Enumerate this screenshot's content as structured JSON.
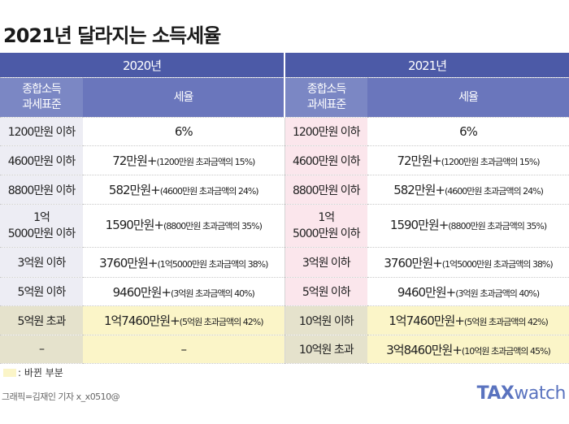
{
  "title": "2021년 달라지는 소득세율",
  "header": {
    "year_2020": "2020년",
    "year_2021": "2021년",
    "bracket_label_line1": "종합소득",
    "bracket_label_line2": "과세표준",
    "rate_label": "세율"
  },
  "rows": [
    {
      "b20": "1200만원 이하",
      "r20_main": "6%",
      "r20_note": "",
      "b21": "1200만원 이하",
      "r21_main": "6%",
      "r21_note": ""
    },
    {
      "b20": "4600만원 이하",
      "r20_main": "72만원+",
      "r20_note": "(1200만원 초과금액의 15%)",
      "b21": "4600만원 이하",
      "r21_main": "72만원+",
      "r21_note": "(1200만원 초과금액의 15%)"
    },
    {
      "b20": "8800만원 이하",
      "r20_main": "582만원+",
      "r20_note": "(4600만원 초과금액의 24%)",
      "b21": "8800만원 이하",
      "r21_main": "582만원+",
      "r21_note": "(4600만원 초과금액의 24%)"
    },
    {
      "b20_line1": "1억",
      "b20_line2": "5000만원 이하",
      "r20_main": "1590만원+",
      "r20_note": "(8800만원 초과금액의 35%)",
      "b21_line1": "1억",
      "b21_line2": "5000만원 이하",
      "r21_main": "1590만원+",
      "r21_note": "(8800만원 초과금액의 35%)"
    },
    {
      "b20": "3억원 이하",
      "r20_main": "3760만원+",
      "r20_note": "(1억5000만원 초과금액의 38%)",
      "b21": "3억원 이하",
      "r21_main": "3760만원+",
      "r21_note": "(1억5000만원 초과금액의 38%)"
    },
    {
      "b20": "5억원 이하",
      "r20_main": "9460만원+",
      "r20_note": "(3억원 초과금액의 40%)",
      "b21": "5억원 이하",
      "r21_main": "9460만원+",
      "r21_note": "(3억원 초과금액의 40%)"
    },
    {
      "b20": "5억원 초과",
      "r20_main": "1억7460만원+",
      "r20_note": "(5억원 초과금액의 42%)",
      "b21": "10억원 이하",
      "r21_main": "1억7460만원+",
      "r21_note": "(5억원 초과금액의 42%)"
    },
    {
      "b20": "–",
      "r20_main": "–",
      "r20_note": "",
      "b21": "10억원 초과",
      "r21_main": "3억8460만원+",
      "r21_note": "(10억원 초과금액의 45%)"
    }
  ],
  "legend": {
    "text": ": 바뀐 부분",
    "color": "#fbf5c8"
  },
  "credit": "그래픽=김재인 기자 x_x0510@",
  "logo": {
    "part1": "TAX",
    "part2": "watch"
  },
  "colors": {
    "header_dark": "#4c5aa7",
    "header_light": "#7b87c4",
    "bracket_2020_bg": "#ededf4",
    "bracket_2021_bg": "#fbe6ec",
    "changed_bg": "#fbf5c8"
  }
}
